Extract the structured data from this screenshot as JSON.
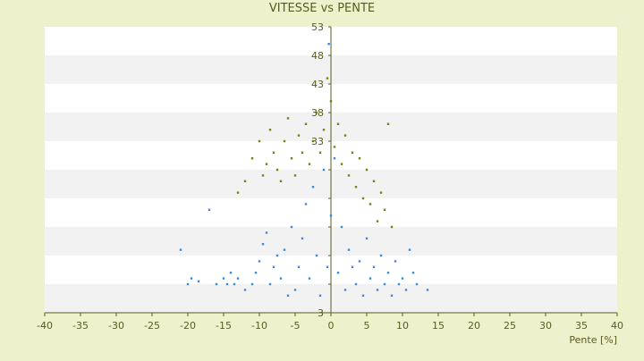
{
  "chart_data": {
    "type": "scatter",
    "title": "VITESSE vs PENTE",
    "xlabel": "Pente [%]",
    "ylabel": "",
    "xlim": [
      -40,
      40
    ],
    "ylim": [
      3,
      53
    ],
    "x_ticks": [
      "-40",
      "-35",
      "-30",
      "-25",
      "-20",
      "-15",
      "-10",
      "-5",
      "0",
      "5",
      "10",
      "15",
      "20",
      "25",
      "30",
      "35",
      "40"
    ],
    "y_ticks": [
      "3",
      "8",
      "13",
      "18",
      "23",
      "28",
      "33",
      "38",
      "43",
      "48",
      "53"
    ],
    "y_tick_labels_shown": [
      "3",
      "33",
      "38",
      "43",
      "48",
      "53"
    ],
    "grid": "horizontal alternating bands",
    "legend": "none",
    "colors": {
      "background": "#eef2cc",
      "plot_band_light": "#ffffff",
      "plot_band_dark": "#f2f2f2",
      "axis": "#5a5a1e"
    },
    "series": [
      {
        "color": "#3a8bd6",
        "marker": "dot",
        "points": [
          [
            -21,
            14
          ],
          [
            -20,
            8
          ],
          [
            -19.5,
            9
          ],
          [
            -18.5,
            8.5
          ],
          [
            -17,
            21
          ],
          [
            -16,
            8
          ],
          [
            -15,
            9
          ],
          [
            -14.5,
            8
          ],
          [
            -14,
            10
          ],
          [
            -13.5,
            8
          ],
          [
            -13,
            9
          ],
          [
            -12,
            7
          ],
          [
            -11,
            8
          ],
          [
            -10.5,
            10
          ],
          [
            -10,
            12
          ],
          [
            -9.5,
            15
          ],
          [
            -9,
            17
          ],
          [
            -8.5,
            8
          ],
          [
            -8,
            11
          ],
          [
            -7.5,
            13
          ],
          [
            -7,
            9
          ],
          [
            -6.5,
            14
          ],
          [
            -6,
            6
          ],
          [
            -5.5,
            18
          ],
          [
            -5,
            7
          ],
          [
            -4.5,
            11
          ],
          [
            -4,
            16
          ],
          [
            -3.5,
            22
          ],
          [
            -3,
            9
          ],
          [
            -2.5,
            25
          ],
          [
            -2,
            13
          ],
          [
            -1.5,
            6
          ],
          [
            -1,
            28
          ],
          [
            -0.5,
            11
          ],
          [
            -0.3,
            50
          ],
          [
            0,
            20
          ],
          [
            0.5,
            30
          ],
          [
            1,
            10
          ],
          [
            1.5,
            18
          ],
          [
            2,
            7
          ],
          [
            2.5,
            14
          ],
          [
            3,
            11
          ],
          [
            3.5,
            8
          ],
          [
            4,
            12
          ],
          [
            4.5,
            6
          ],
          [
            5,
            16
          ],
          [
            5.5,
            9
          ],
          [
            6,
            11
          ],
          [
            6.5,
            7
          ],
          [
            7,
            13
          ],
          [
            7.5,
            8
          ],
          [
            8,
            10
          ],
          [
            8.5,
            6
          ],
          [
            9,
            12
          ],
          [
            9.5,
            8
          ],
          [
            10,
            9
          ],
          [
            10.5,
            7
          ],
          [
            11,
            14
          ],
          [
            11.5,
            10
          ],
          [
            12,
            8
          ],
          [
            13.5,
            7
          ]
        ]
      },
      {
        "color": "#7a7d19",
        "marker": "dot",
        "points": [
          [
            -13,
            24
          ],
          [
            -12,
            26
          ],
          [
            -11,
            30
          ],
          [
            -10,
            33
          ],
          [
            -9.5,
            27
          ],
          [
            -9,
            29
          ],
          [
            -8.5,
            35
          ],
          [
            -8,
            31
          ],
          [
            -7.5,
            28
          ],
          [
            -7,
            26
          ],
          [
            -6.5,
            33
          ],
          [
            -6,
            37
          ],
          [
            -5.5,
            30
          ],
          [
            -5,
            27
          ],
          [
            -4.5,
            34
          ],
          [
            -4,
            31
          ],
          [
            -3.5,
            36
          ],
          [
            -3,
            29
          ],
          [
            -2.5,
            33
          ],
          [
            -2,
            38
          ],
          [
            -1.5,
            31
          ],
          [
            -1,
            35
          ],
          [
            -0.5,
            44
          ],
          [
            0,
            40
          ],
          [
            0.5,
            32
          ],
          [
            1,
            36
          ],
          [
            1.5,
            29
          ],
          [
            2,
            34
          ],
          [
            2.5,
            27
          ],
          [
            3,
            31
          ],
          [
            3.5,
            25
          ],
          [
            4,
            30
          ],
          [
            4.5,
            23
          ],
          [
            5,
            28
          ],
          [
            5.5,
            22
          ],
          [
            6,
            26
          ],
          [
            6.5,
            19
          ],
          [
            7,
            24
          ],
          [
            7.5,
            21
          ],
          [
            8,
            36
          ],
          [
            8.5,
            18
          ]
        ]
      }
    ]
  }
}
